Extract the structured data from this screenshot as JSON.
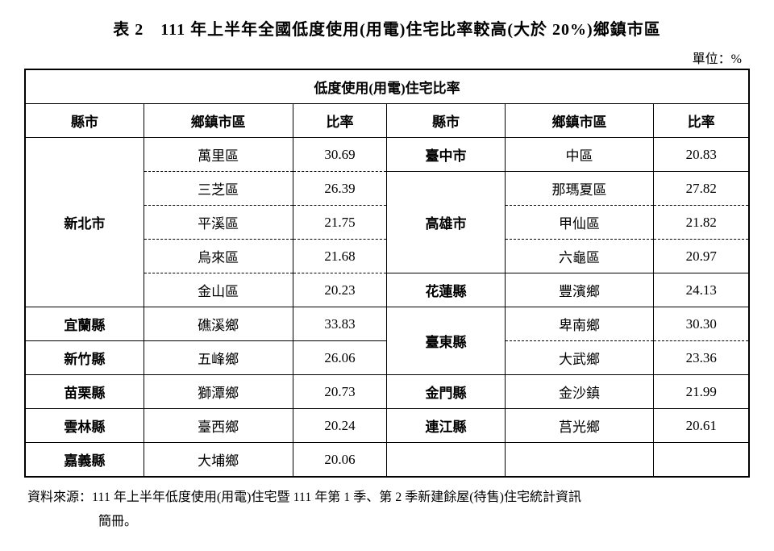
{
  "title": "表 2　111 年上半年全國低度使用(用電)住宅比率較高(大於 20%)鄉鎮市區",
  "unit": "單位：%",
  "table_header_main": "低度使用(用電)住宅比率",
  "columns": {
    "col1": "縣市",
    "col2": "鄉鎮市區",
    "col3": "比率",
    "col4": "縣市",
    "col5": "鄉鎮市區",
    "col6": "比率"
  },
  "left": {
    "newtaipei": {
      "name": "新北市",
      "rows": [
        {
          "town": "萬里區",
          "rate": "30.69"
        },
        {
          "town": "三芝區",
          "rate": "26.39"
        },
        {
          "town": "平溪區",
          "rate": "21.75"
        },
        {
          "town": "烏來區",
          "rate": "21.68"
        },
        {
          "town": "金山區",
          "rate": "20.23"
        }
      ]
    },
    "yilan": {
      "name": "宜蘭縣",
      "town": "礁溪鄉",
      "rate": "33.83"
    },
    "hsinchu": {
      "name": "新竹縣",
      "town": "五峰鄉",
      "rate": "26.06"
    },
    "miaoli": {
      "name": "苗栗縣",
      "town": "獅潭鄉",
      "rate": "20.73"
    },
    "yunlin": {
      "name": "雲林縣",
      "town": "臺西鄉",
      "rate": "20.24"
    },
    "chiayi": {
      "name": "嘉義縣",
      "town": "大埔鄉",
      "rate": "20.06"
    }
  },
  "right": {
    "taichung": {
      "name": "臺中市",
      "town": "中區",
      "rate": "20.83"
    },
    "kaohsiung": {
      "name": "高雄市",
      "rows": [
        {
          "town": "那瑪夏區",
          "rate": "27.82"
        },
        {
          "town": "甲仙區",
          "rate": "21.82"
        },
        {
          "town": "六龜區",
          "rate": "20.97"
        }
      ]
    },
    "hualien": {
      "name": "花蓮縣",
      "town": "豐濱鄉",
      "rate": "24.13"
    },
    "taitung": {
      "name": "臺東縣",
      "rows": [
        {
          "town": "卑南鄉",
          "rate": "30.30"
        },
        {
          "town": "大武鄉",
          "rate": "23.36"
        }
      ]
    },
    "kinmen": {
      "name": "金門縣",
      "town": "金沙鎮",
      "rate": "21.99"
    },
    "lienchiang": {
      "name": "連江縣",
      "town": "莒光鄉",
      "rate": "20.61"
    }
  },
  "source_line1": "資料來源：111 年上半年低度使用(用電)住宅暨 111 年第 1 季、第 2 季新建餘屋(待售)住宅統計資訊",
  "source_line2": "簡冊。"
}
